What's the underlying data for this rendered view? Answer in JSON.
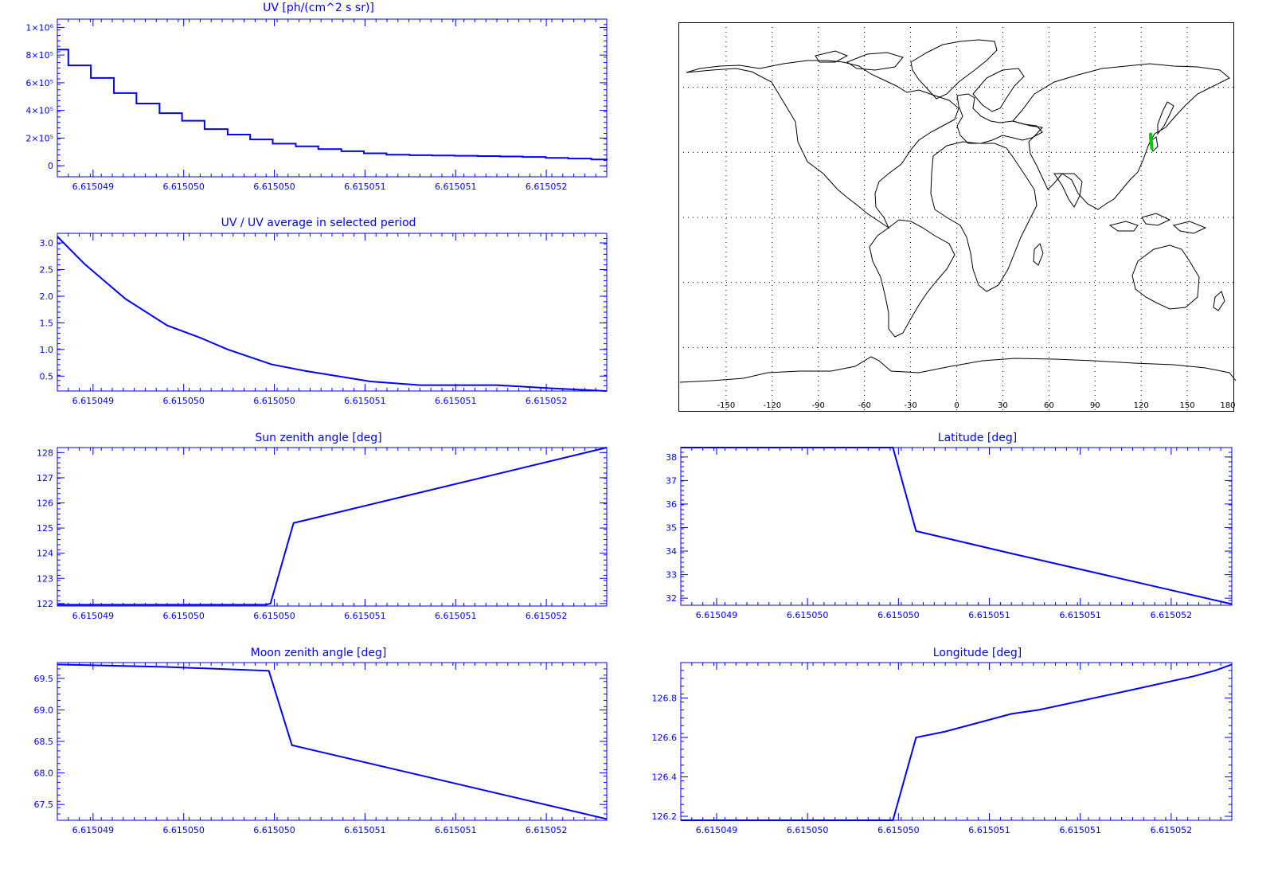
{
  "colors": {
    "axis": "#0000ff",
    "line": "#0000ff",
    "map": "#000000",
    "marker": "#00cc00"
  },
  "chart_data": [
    {
      "id": "uv",
      "type": "line",
      "step": true,
      "title": "UV [ph/(cm^2 s sr)]",
      "x_ticks": [
        "6.615049",
        "6.615050",
        "6.615050",
        "6.615051",
        "6.615051",
        "6.615052"
      ],
      "x_tick_pos": [
        0.065,
        0.23,
        0.395,
        0.56,
        0.725,
        0.89
      ],
      "ylim": [
        -80000,
        1060000
      ],
      "y_ticks": [
        {
          "v": 0,
          "label": "0"
        },
        {
          "v": 200000,
          "label": "2×10⁵"
        },
        {
          "v": 400000,
          "label": "4×10⁵"
        },
        {
          "v": 600000,
          "label": "6×10⁵"
        },
        {
          "v": 800000,
          "label": "8×10⁵"
        },
        {
          "v": 1000000,
          "label": "1×10⁶"
        }
      ],
      "x": [
        0,
        0.02,
        0.061,
        0.103,
        0.144,
        0.186,
        0.227,
        0.268,
        0.31,
        0.351,
        0.392,
        0.434,
        0.475,
        0.517,
        0.558,
        0.599,
        0.641,
        0.682,
        0.723,
        0.765,
        0.806,
        0.847,
        0.889,
        0.93,
        0.972,
        1.0
      ],
      "y": [
        840000,
        725000,
        635000,
        525000,
        450000,
        380000,
        325000,
        265000,
        225000,
        190000,
        160000,
        140000,
        120000,
        105000,
        90000,
        80000,
        76000,
        74000,
        72000,
        70000,
        67000,
        63000,
        57000,
        52000,
        45000,
        40000
      ]
    },
    {
      "id": "ratio",
      "type": "line",
      "title": "UV / UV average in selected period",
      "x_ticks": [
        "6.615049",
        "6.615050",
        "6.615050",
        "6.615051",
        "6.615051",
        "6.615052"
      ],
      "x_tick_pos": [
        0.065,
        0.23,
        0.395,
        0.56,
        0.725,
        0.89
      ],
      "ylim": [
        0.22,
        3.18
      ],
      "y_ticks": [
        {
          "v": 0.5,
          "label": "0.5"
        },
        {
          "v": 1.0,
          "label": "1.0"
        },
        {
          "v": 1.5,
          "label": "1.5"
        },
        {
          "v": 2.0,
          "label": "2.0"
        },
        {
          "v": 2.5,
          "label": "2.5"
        },
        {
          "v": 3.0,
          "label": "3.0"
        }
      ],
      "x": [
        0,
        0.05,
        0.124,
        0.2,
        0.26,
        0.31,
        0.39,
        0.45,
        0.57,
        0.66,
        0.8,
        0.9,
        1.0
      ],
      "y": [
        3.12,
        2.6,
        1.95,
        1.45,
        1.22,
        1.0,
        0.72,
        0.6,
        0.4,
        0.33,
        0.33,
        0.27,
        0.22
      ]
    },
    {
      "id": "sun",
      "type": "line",
      "title": "Sun zenith angle [deg]",
      "x_ticks": [
        "6.615049",
        "6.615050",
        "6.615050",
        "6.615051",
        "6.615051",
        "6.615052"
      ],
      "x_tick_pos": [
        0.065,
        0.23,
        0.395,
        0.56,
        0.725,
        0.89
      ],
      "ylim": [
        121.9,
        128.2
      ],
      "y_ticks": [
        {
          "v": 122,
          "label": "122"
        },
        {
          "v": 123,
          "label": "123"
        },
        {
          "v": 124,
          "label": "124"
        },
        {
          "v": 125,
          "label": "125"
        },
        {
          "v": 126,
          "label": "126"
        },
        {
          "v": 127,
          "label": "127"
        },
        {
          "v": 128,
          "label": "128"
        }
      ],
      "x": [
        0,
        0.38,
        0.388,
        0.43,
        1.0
      ],
      "y": [
        121.95,
        121.95,
        122.0,
        125.2,
        128.2
      ]
    },
    {
      "id": "lat",
      "type": "line",
      "title": "Latitude [deg]",
      "x_ticks": [
        "6.615049",
        "6.615050",
        "6.615050",
        "6.615051",
        "6.615051",
        "6.615052"
      ],
      "x_tick_pos": [
        0.065,
        0.23,
        0.395,
        0.56,
        0.725,
        0.89
      ],
      "ylim": [
        31.7,
        38.4
      ],
      "y_ticks": [
        {
          "v": 32,
          "label": "32"
        },
        {
          "v": 33,
          "label": "33"
        },
        {
          "v": 34,
          "label": "34"
        },
        {
          "v": 35,
          "label": "35"
        },
        {
          "v": 36,
          "label": "36"
        },
        {
          "v": 37,
          "label": "37"
        },
        {
          "v": 38,
          "label": "38"
        }
      ],
      "x": [
        0,
        0.385,
        0.427,
        0.6,
        1.0
      ],
      "y": [
        38.4,
        38.4,
        34.85,
        33.9,
        31.75
      ]
    },
    {
      "id": "moon",
      "type": "line",
      "title": "Moon zenith angle [deg]",
      "x_ticks": [
        "6.615049",
        "6.615050",
        "6.615050",
        "6.615051",
        "6.615051",
        "6.615052"
      ],
      "x_tick_pos": [
        0.065,
        0.23,
        0.395,
        0.56,
        0.725,
        0.89
      ],
      "ylim": [
        67.25,
        69.75
      ],
      "y_ticks": [
        {
          "v": 67.5,
          "label": "67.5"
        },
        {
          "v": 68.0,
          "label": "68.0"
        },
        {
          "v": 68.5,
          "label": "68.5"
        },
        {
          "v": 69.0,
          "label": "69.0"
        },
        {
          "v": 69.5,
          "label": "69.5"
        }
      ],
      "x": [
        0,
        0.2,
        0.385,
        0.427,
        1.0
      ],
      "y": [
        69.72,
        69.68,
        69.62,
        68.44,
        67.27
      ]
    },
    {
      "id": "lon",
      "type": "line",
      "title": "Longitude [deg]",
      "x_ticks": [
        "6.615049",
        "6.615050",
        "6.615050",
        "6.615051",
        "6.615051",
        "6.615052"
      ],
      "x_tick_pos": [
        0.065,
        0.23,
        0.395,
        0.56,
        0.725,
        0.89
      ],
      "ylim": [
        126.18,
        126.98
      ],
      "y_ticks": [
        {
          "v": 126.2,
          "label": "126.2"
        },
        {
          "v": 126.4,
          "label": "126.4"
        },
        {
          "v": 126.6,
          "label": "126.6"
        },
        {
          "v": 126.8,
          "label": "126.8"
        }
      ],
      "x": [
        0,
        0.385,
        0.427,
        0.48,
        0.6,
        0.65,
        0.8,
        0.93,
        0.97,
        1.0
      ],
      "y": [
        126.18,
        126.18,
        126.6,
        126.63,
        126.72,
        126.74,
        126.83,
        126.91,
        126.94,
        126.97
      ]
    }
  ],
  "map": {
    "x_labels": [
      "-150",
      "-120",
      "-90",
      "-60",
      "-30",
      "0",
      "30",
      "60",
      "90",
      "120",
      "150",
      "180"
    ],
    "x_values": [
      -150,
      -120,
      -90,
      -60,
      -30,
      0,
      30,
      60,
      90,
      120,
      150,
      180
    ],
    "lon_range": [
      -180,
      180
    ],
    "lat_range": [
      -90,
      90
    ],
    "grid_lat": [
      -60,
      -30,
      0,
      30,
      60
    ],
    "track": [
      [
        126.18,
        38.4
      ],
      [
        126.18,
        36.5
      ],
      [
        126.6,
        34.85
      ],
      [
        126.97,
        31.75
      ]
    ]
  }
}
